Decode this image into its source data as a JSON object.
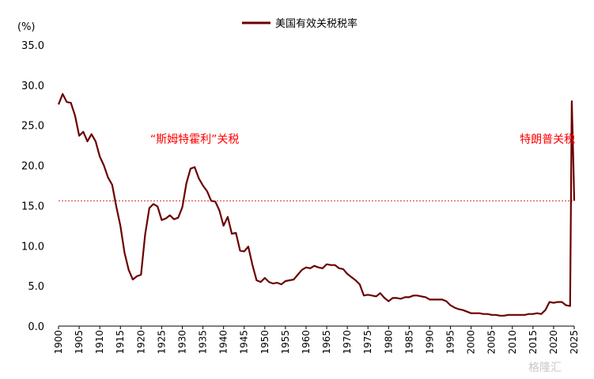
{
  "chart_data": {
    "type": "line",
    "unit_label": "(%)",
    "series": [
      {
        "name": "美国有效关税税率",
        "color": "#6b0000",
        "x": [
          1900,
          1901,
          1902,
          1903,
          1904,
          1905,
          1906,
          1907,
          1908,
          1909,
          1910,
          1911,
          1912,
          1913,
          1914,
          1915,
          1916,
          1917,
          1918,
          1919,
          1920,
          1921,
          1922,
          1923,
          1924,
          1925,
          1926,
          1927,
          1928,
          1929,
          1930,
          1931,
          1932,
          1933,
          1934,
          1935,
          1936,
          1937,
          1938,
          1939,
          1940,
          1941,
          1942,
          1943,
          1944,
          1945,
          1946,
          1947,
          1948,
          1949,
          1950,
          1951,
          1952,
          1953,
          1954,
          1955,
          1956,
          1957,
          1958,
          1959,
          1960,
          1961,
          1962,
          1963,
          1964,
          1965,
          1966,
          1967,
          1968,
          1969,
          1970,
          1971,
          1972,
          1973,
          1974,
          1975,
          1976,
          1977,
          1978,
          1979,
          1980,
          1981,
          1982,
          1983,
          1984,
          1985,
          1986,
          1987,
          1988,
          1989,
          1990,
          1991,
          1992,
          1993,
          1994,
          1995,
          1996,
          1997,
          1998,
          1999,
          2000,
          2001,
          2002,
          2003,
          2004,
          2005,
          2006,
          2007,
          2008,
          2009,
          2010,
          2011,
          2012,
          2013,
          2014,
          2015,
          2016,
          2017,
          2018,
          2019,
          2020,
          2021,
          2022,
          2023,
          2024,
          2024.4,
          2024.8,
          2025
        ],
        "y": [
          27.6,
          28.9,
          27.9,
          27.8,
          26.2,
          23.7,
          24.2,
          23.0,
          23.9,
          23.0,
          21.1,
          20.0,
          18.5,
          17.6,
          14.9,
          12.5,
          9.1,
          7.0,
          5.8,
          6.2,
          6.4,
          11.4,
          14.7,
          15.2,
          14.9,
          13.2,
          13.4,
          13.8,
          13.3,
          13.5,
          14.8,
          17.8,
          19.6,
          19.8,
          18.4,
          17.5,
          16.8,
          15.6,
          15.5,
          14.4,
          12.5,
          13.6,
          11.5,
          11.6,
          9.4,
          9.3,
          9.9,
          7.6,
          5.7,
          5.5,
          6.0,
          5.5,
          5.3,
          5.4,
          5.2,
          5.6,
          5.7,
          5.8,
          6.4,
          7.0,
          7.3,
          7.2,
          7.5,
          7.3,
          7.2,
          7.7,
          7.6,
          7.6,
          7.2,
          7.1,
          6.5,
          6.1,
          5.7,
          5.2,
          3.8,
          3.9,
          3.8,
          3.7,
          4.1,
          3.5,
          3.1,
          3.5,
          3.5,
          3.4,
          3.6,
          3.6,
          3.8,
          3.8,
          3.7,
          3.6,
          3.3,
          3.3,
          3.3,
          3.3,
          3.1,
          2.6,
          2.3,
          2.1,
          2.0,
          1.8,
          1.6,
          1.6,
          1.6,
          1.5,
          1.5,
          1.4,
          1.4,
          1.3,
          1.3,
          1.4,
          1.4,
          1.4,
          1.4,
          1.4,
          1.5,
          1.5,
          1.6,
          1.5,
          2.0,
          3.0,
          2.9,
          3.0,
          3.0,
          2.6,
          2.5,
          28.0,
          20.0,
          15.6
        ]
      }
    ],
    "reference_line": {
      "y": 15.6,
      "color": "#d03030",
      "style": "dotted"
    },
    "ylim": [
      0,
      35
    ],
    "yticks": [
      "0.0",
      "5.0",
      "10.0",
      "15.0",
      "20.0",
      "25.0",
      "30.0",
      "35.0"
    ],
    "xlim": [
      1900,
      2025
    ],
    "xticks": [
      "1900",
      "1905",
      "1910",
      "1915",
      "1920",
      "1925",
      "1930",
      "1935",
      "1940",
      "1945",
      "1950",
      "1955",
      "1960",
      "1965",
      "1970",
      "1975",
      "1980",
      "1985",
      "1990",
      "1995",
      "2000",
      "2005",
      "2010",
      "2015",
      "2020",
      "2025"
    ],
    "annotations": [
      {
        "text": "“斯姆特霍利”关税",
        "x": 1933,
        "y": 23.3,
        "color": "#ff0000"
      },
      {
        "text": "特朗普关税",
        "x": 2018.5,
        "y": 23.3,
        "color": "#ff0000"
      }
    ],
    "legend": {
      "position": "top-center"
    },
    "grid": false
  },
  "watermark": "格隆汇"
}
